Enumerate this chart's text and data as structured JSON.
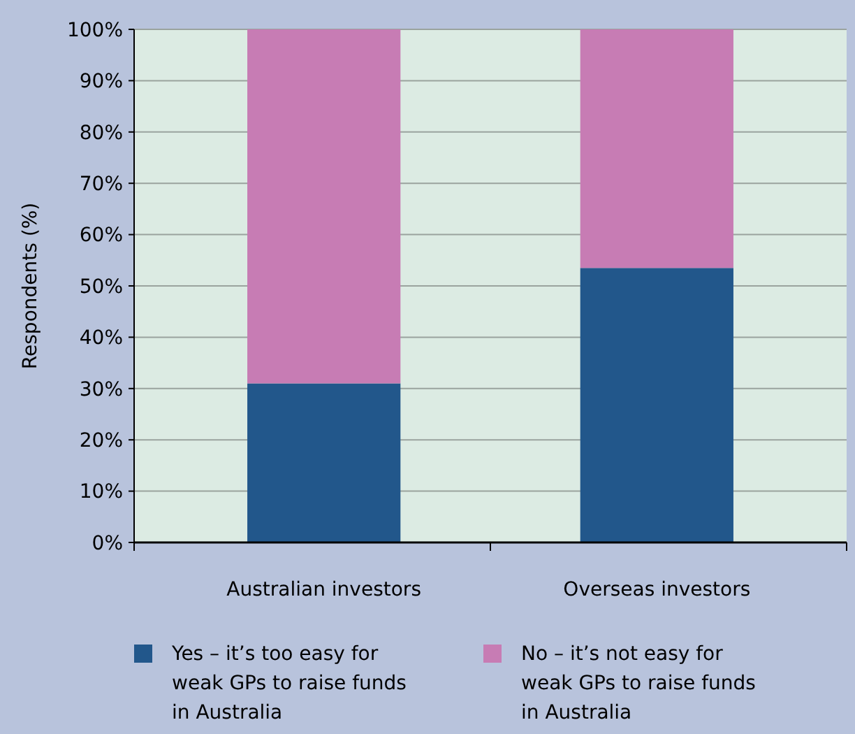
{
  "chart_data": {
    "type": "bar",
    "stacked": true,
    "categories": [
      "Australian investors",
      "Overseas investors"
    ],
    "ylabel": "Respondents (%)",
    "series": [
      {
        "name": "Yes – it’s too easy for weak GPs to raise funds in Australia",
        "color": "#22578b",
        "values": [
          31,
          53.5
        ]
      },
      {
        "name": "No – it’s not easy for weak GPs to raise funds in Australia",
        "color": "#c77cb4",
        "values": [
          69,
          46.5
        ]
      }
    ],
    "ylim": [
      0,
      100
    ],
    "yticks": [
      {
        "value": 0,
        "label": "0%"
      },
      {
        "value": 10,
        "label": "10%"
      },
      {
        "value": 20,
        "label": "20%"
      },
      {
        "value": 30,
        "label": "30%"
      },
      {
        "value": 40,
        "label": "40%"
      },
      {
        "value": 50,
        "label": "50%"
      },
      {
        "value": 60,
        "label": "60%"
      },
      {
        "value": 70,
        "label": "70%"
      },
      {
        "value": 80,
        "label": "80%"
      },
      {
        "value": 90,
        "label": "90%"
      },
      {
        "value": 100,
        "label": "100%"
      }
    ],
    "grid": "y",
    "legend": "bottom"
  }
}
